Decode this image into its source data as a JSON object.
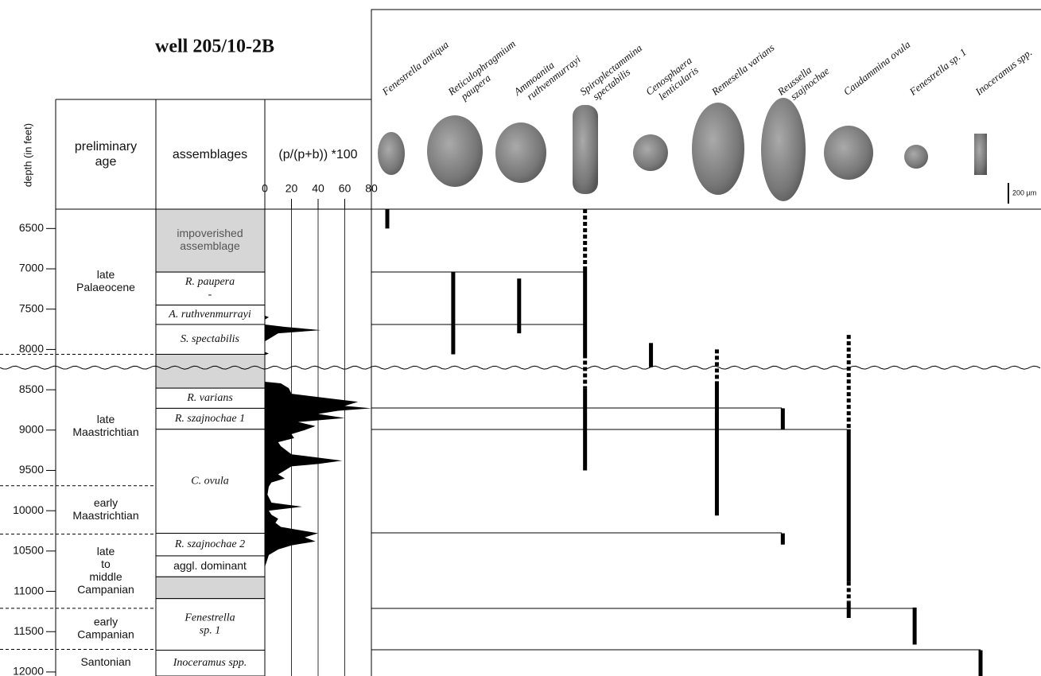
{
  "chart_data": {
    "type": "stratigraphy",
    "title": "well 205/10-2B",
    "y_label": "depth (in feet)",
    "ylim": [
      6260,
      12050
    ],
    "yticks": [
      6500,
      7000,
      7500,
      8000,
      8500,
      9000,
      9500,
      10000,
      10500,
      11000,
      11500,
      12000
    ],
    "age_header": [
      "preliminary",
      "age"
    ],
    "ages": [
      {
        "label": [
          "late",
          "Palaeocene"
        ],
        "top": 6260,
        "base": 8060
      },
      {
        "label": [
          "late",
          "Maastrichtian"
        ],
        "top": 8225,
        "base": 9690
      },
      {
        "label": [
          "early",
          "Maastrichtian"
        ],
        "top": 9690,
        "base": 10290
      },
      {
        "label": [
          "late",
          "to",
          "middle",
          "Campanian"
        ],
        "top": 10290,
        "base": 11210
      },
      {
        "label": [
          "early",
          "Campanian"
        ],
        "top": 11210,
        "base": 11720
      },
      {
        "label": [
          "Santonian"
        ],
        "top": 11720,
        "base": 12050
      }
    ],
    "unconformity": 8225,
    "assemblage_header": "assemblages",
    "shade_color": "#d6d6d6",
    "assemblages": [
      {
        "label": [
          "impoverished",
          "assemblage"
        ],
        "top": 6260,
        "base": 7040,
        "shaded": true,
        "italic": false
      },
      {
        "label": [
          "R. paupera",
          "-"
        ],
        "top": 7040,
        "base": 7450,
        "shaded": false,
        "italic": true
      },
      {
        "label": [
          "A. ruthvenmurrayi"
        ],
        "top": 7450,
        "base": 7690,
        "shaded": false,
        "italic": true
      },
      {
        "label": [
          "S. spectabilis"
        ],
        "top": 7690,
        "base": 8060,
        "shaded": false,
        "italic": true
      },
      {
        "label": [],
        "top": 8060,
        "base": 8480,
        "shaded": true,
        "italic": false
      },
      {
        "label": [
          "R. varians"
        ],
        "top": 8480,
        "base": 8730,
        "shaded": false,
        "italic": true
      },
      {
        "label": [
          "R. szajnochae 1"
        ],
        "top": 8730,
        "base": 8990,
        "shaded": false,
        "italic": true
      },
      {
        "label": [
          "C. ovula"
        ],
        "top": 8990,
        "base": 10280,
        "shaded": false,
        "italic": true
      },
      {
        "label": [
          "R. szajnochae 2"
        ],
        "top": 10280,
        "base": 10560,
        "shaded": false,
        "italic": true
      },
      {
        "label": [
          "aggl. dominant"
        ],
        "top": 10560,
        "base": 10820,
        "shaded": false,
        "italic": false
      },
      {
        "label": [],
        "top": 10820,
        "base": 11090,
        "shaded": true,
        "italic": false
      },
      {
        "label": [
          "Fenestrella",
          "sp. 1"
        ],
        "top": 11090,
        "base": 11730,
        "shaded": false,
        "italic": true
      },
      {
        "label": [
          "Inoceramus spp."
        ],
        "top": 11730,
        "base": 12050,
        "shaded": false,
        "italic": true
      }
    ],
    "ratio_label": "(p/(p+b)) *100",
    "xlim": [
      0,
      80
    ],
    "xticks": [
      0,
      20,
      40,
      60,
      80
    ],
    "ratio": {
      "depth": [
        7580,
        7600,
        7630,
        7690,
        7720,
        7760,
        7800,
        7860,
        7900,
        8030,
        8050,
        8070,
        8400,
        8420,
        8480,
        8550,
        8600,
        8650,
        8700,
        8730,
        8760,
        8800,
        8850,
        8900,
        8950,
        9000,
        9050,
        9100,
        9150,
        9200,
        9300,
        9380,
        9420,
        9450,
        9500,
        9550,
        9600,
        9650,
        9700,
        9800,
        9900,
        9950,
        10000,
        10050,
        10100,
        10150,
        10200,
        10280,
        10330,
        10380,
        10430,
        10480,
        10550,
        10600,
        10650,
        10700
      ],
      "values": [
        0,
        3,
        0,
        0,
        15,
        42,
        10,
        4,
        0,
        0,
        3,
        0,
        0,
        12,
        18,
        20,
        45,
        70,
        60,
        80,
        55,
        40,
        60,
        25,
        38,
        30,
        20,
        22,
        10,
        12,
        20,
        58,
        40,
        20,
        15,
        10,
        15,
        5,
        3,
        2,
        5,
        28,
        3,
        5,
        10,
        8,
        12,
        40,
        30,
        38,
        20,
        10,
        3,
        2,
        1,
        0
      ]
    },
    "scale_bar": "200 µm",
    "species": [
      {
        "name": [
          "Fenestrella antiqua"
        ],
        "ranges": [
          {
            "top": 6260,
            "base": 6500,
            "style": "solid"
          }
        ]
      },
      {
        "name": [
          "Reticulophragmium",
          "paupera"
        ],
        "ranges": [
          {
            "top": 7040,
            "base": 8060,
            "style": "solid"
          }
        ]
      },
      {
        "name": [
          "Ammoanita",
          "ruthvenmurrayi"
        ],
        "ranges": [
          {
            "top": 7120,
            "base": 7800,
            "style": "solid"
          }
        ]
      },
      {
        "name": [
          "Spiroplectammina",
          "spectabilis"
        ],
        "ranges": [
          {
            "top": 6260,
            "base": 7000,
            "style": "dotted"
          },
          {
            "top": 7000,
            "base": 8060,
            "style": "solid"
          },
          {
            "top": 8060,
            "base": 8480,
            "style": "dotted"
          },
          {
            "top": 8480,
            "base": 9500,
            "style": "solid"
          }
        ]
      },
      {
        "name": [
          "Cenosphaera",
          "lenticularis"
        ],
        "ranges": [
          {
            "top": 7920,
            "base": 8220,
            "style": "solid"
          }
        ]
      },
      {
        "name": [
          "Remesella varians"
        ],
        "ranges": [
          {
            "top": 8000,
            "base": 8440,
            "style": "dotted"
          },
          {
            "top": 8440,
            "base": 10060,
            "style": "solid"
          }
        ]
      },
      {
        "name": [
          "Reussella",
          "szajnochae"
        ],
        "ranges": [
          {
            "top": 8730,
            "base": 8990,
            "style": "solid"
          },
          {
            "top": 10280,
            "base": 10420,
            "style": "solid"
          }
        ]
      },
      {
        "name": [
          "Caudammina ovula"
        ],
        "ranges": [
          {
            "top": 7820,
            "base": 8990,
            "style": "dotted"
          },
          {
            "top": 8990,
            "base": 10880,
            "style": "solid"
          },
          {
            "top": 10880,
            "base": 11130,
            "style": "dotted"
          },
          {
            "top": 11130,
            "base": 11330,
            "style": "solid"
          }
        ]
      },
      {
        "name": [
          "Fenestrella sp. 1"
        ],
        "ranges": [
          {
            "top": 11200,
            "base": 11660,
            "style": "solid"
          }
        ]
      },
      {
        "name": [
          "Inoceramus spp."
        ],
        "ranges": [
          {
            "top": 11730,
            "base": 12050,
            "style": "solid"
          }
        ]
      }
    ]
  }
}
